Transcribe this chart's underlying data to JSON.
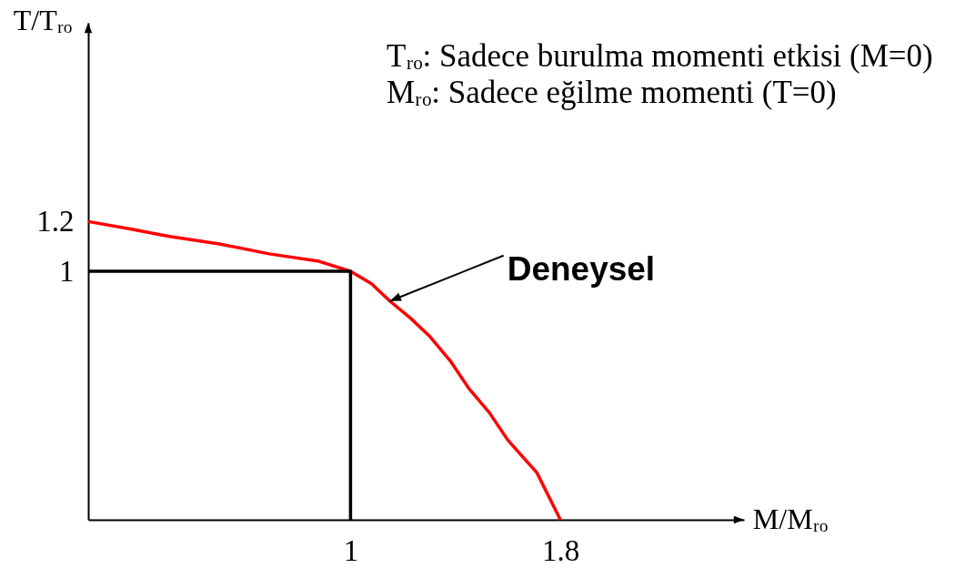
{
  "chart_data": {
    "type": "line",
    "xlabel": "M/Mᵣₒ",
    "ylabel": "T/Tᵣₒ",
    "xlim": [
      0,
      2.5
    ],
    "ylim": [
      0,
      2
    ],
    "xticks": [
      1,
      1.8
    ],
    "yticks": [
      1,
      1.2
    ],
    "series": [
      {
        "color": "#ff0000",
        "x": [
          0,
          0.16,
          0.31,
          0.5,
          0.69,
          0.88,
          1,
          1.08,
          1.15,
          1.23,
          1.3,
          1.38,
          1.45,
          1.53,
          1.6,
          1.71,
          1.8
        ],
        "values": [
          1.2,
          1.17,
          1.14,
          1.11,
          1.07,
          1.04,
          1,
          0.95,
          0.88,
          0.81,
          0.74,
          0.64,
          0.53,
          0.43,
          0.32,
          0.19,
          0
        ]
      },
      {
        "color": "#000000",
        "x": [
          0,
          1,
          1
        ],
        "values": [
          1,
          1,
          0
        ]
      }
    ],
    "annotations": [
      "Tᵣₒ: Sadece burulma momenti etkisi (M=0)",
      "Mᵣₒ: Sadece eğilme momenti (T=0)",
      {
        "text": "Deneysel",
        "x": 1.15,
        "y": 0.88
      }
    ]
  }
}
